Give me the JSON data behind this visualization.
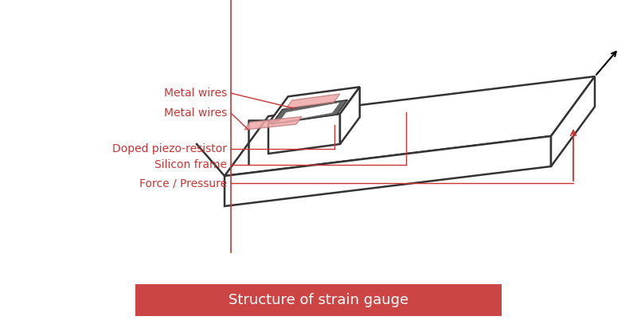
{
  "title": "Structure of strain gauge",
  "title_bg": "#cd4444",
  "title_color": "#ffffff",
  "label_color": "#cc3333",
  "body_edge": "#333333",
  "pink_fill": "#f0a8a8",
  "pink_edge": "#c08080",
  "gray_fill": "#888888",
  "labels": [
    "Metal wires",
    "Metal wires",
    "Doped piezo-resistor",
    "Silicon frame",
    "Force / Pressure"
  ],
  "bg_color": "#ffffff",
  "red_line": "#cc3333"
}
